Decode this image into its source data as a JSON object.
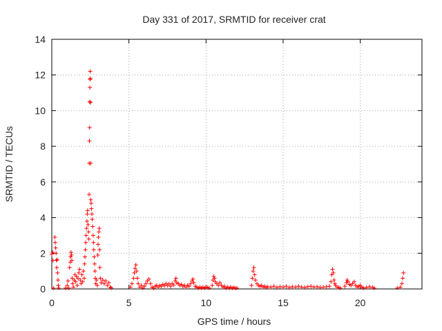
{
  "chart_data": {
    "type": "scatter",
    "title": "Day 331 of 2017, SRMTID for receiver crat",
    "xlabel": "GPS time / hours",
    "ylabel": "SRMTID / TECUs",
    "xlim": [
      0,
      24
    ],
    "ylim": [
      0,
      14
    ],
    "xticks": [
      0,
      5,
      10,
      15,
      20
    ],
    "yticks": [
      0,
      2,
      4,
      6,
      8,
      10,
      12,
      14
    ],
    "grid": true,
    "marker": "+",
    "color": "#ff0000",
    "series": [
      {
        "name": "crat",
        "points": [
          [
            0.0,
            1.95
          ],
          [
            0.05,
            2.05
          ],
          [
            0.08,
            1.6
          ],
          [
            0.1,
            0.05
          ],
          [
            0.2,
            2.9
          ],
          [
            0.22,
            2.6
          ],
          [
            0.25,
            2.3
          ],
          [
            0.28,
            2.0
          ],
          [
            0.3,
            1.6
          ],
          [
            0.32,
            1.2
          ],
          [
            0.35,
            1.65
          ],
          [
            0.37,
            0.9
          ],
          [
            0.4,
            0.5
          ],
          [
            0.42,
            0.2
          ],
          [
            0.45,
            0.05
          ],
          [
            0.9,
            0.05
          ],
          [
            1.0,
            0.2
          ],
          [
            1.05,
            0.45
          ],
          [
            1.1,
            0.05
          ],
          [
            1.15,
            1.2
          ],
          [
            1.2,
            1.5
          ],
          [
            1.22,
            1.8
          ],
          [
            1.25,
            2.05
          ],
          [
            1.28,
            1.9
          ],
          [
            1.3,
            1.6
          ],
          [
            1.32,
            0.6
          ],
          [
            1.35,
            0.3
          ],
          [
            1.4,
            0.1
          ],
          [
            1.45,
            0.5
          ],
          [
            1.5,
            0.8
          ],
          [
            1.55,
            0.4
          ],
          [
            1.6,
            0.7
          ],
          [
            1.65,
            0.2
          ],
          [
            1.7,
            0.6
          ],
          [
            1.75,
            0.9
          ],
          [
            1.8,
            1.1
          ],
          [
            1.85,
            0.5
          ],
          [
            1.9,
            0.3
          ],
          [
            1.95,
            0.8
          ],
          [
            2.0,
            0.4
          ],
          [
            2.05,
            1.0
          ],
          [
            2.1,
            0.6
          ],
          [
            2.12,
            1.4
          ],
          [
            2.15,
            1.8
          ],
          [
            2.18,
            2.2
          ],
          [
            2.2,
            2.6
          ],
          [
            2.22,
            3.0
          ],
          [
            2.25,
            3.4
          ],
          [
            2.28,
            3.8
          ],
          [
            2.3,
            4.2
          ],
          [
            2.32,
            4.4
          ],
          [
            2.35,
            3.6
          ],
          [
            2.38,
            3.2
          ],
          [
            2.4,
            2.8
          ],
          [
            2.42,
            5.3
          ],
          [
            2.43,
            7.05
          ],
          [
            2.44,
            8.3
          ],
          [
            2.45,
            9.05
          ],
          [
            2.46,
            10.5
          ],
          [
            2.47,
            11.3
          ],
          [
            2.48,
            11.75
          ],
          [
            2.49,
            12.2
          ],
          [
            2.5,
            11.8
          ],
          [
            2.51,
            10.45
          ],
          [
            2.52,
            7.05
          ],
          [
            2.53,
            5.0
          ],
          [
            2.55,
            4.8
          ],
          [
            2.57,
            4.5
          ],
          [
            2.6,
            4.2
          ],
          [
            2.62,
            3.9
          ],
          [
            2.65,
            3.5
          ],
          [
            2.68,
            3.0
          ],
          [
            2.7,
            2.6
          ],
          [
            2.72,
            2.2
          ],
          [
            2.75,
            1.8
          ],
          [
            2.78,
            1.4
          ],
          [
            2.8,
            1.0
          ],
          [
            2.82,
            0.6
          ],
          [
            2.85,
            0.3
          ],
          [
            2.9,
            0.5
          ],
          [
            2.95,
            0.2
          ],
          [
            2.98,
            1.9
          ],
          [
            3.0,
            2.5
          ],
          [
            3.02,
            2.9
          ],
          [
            3.05,
            3.2
          ],
          [
            3.08,
            3.4
          ],
          [
            3.1,
            2.2
          ],
          [
            3.12,
            1.2
          ],
          [
            3.15,
            0.6
          ],
          [
            3.2,
            0.35
          ],
          [
            3.3,
            0.5
          ],
          [
            3.4,
            0.3
          ],
          [
            3.5,
            0.45
          ],
          [
            3.6,
            0.2
          ],
          [
            3.7,
            0.35
          ],
          [
            3.8,
            0.1
          ],
          [
            3.85,
            0.05
          ],
          [
            5.1,
            0.1
          ],
          [
            5.2,
            0.3
          ],
          [
            5.3,
            0.6
          ],
          [
            5.35,
            0.9
          ],
          [
            5.4,
            1.15
          ],
          [
            5.45,
            1.35
          ],
          [
            5.5,
            1.0
          ],
          [
            5.55,
            0.6
          ],
          [
            5.6,
            0.3
          ],
          [
            5.7,
            0.1
          ],
          [
            5.8,
            0.2
          ],
          [
            5.9,
            0.05
          ],
          [
            6.0,
            0.15
          ],
          [
            6.1,
            0.3
          ],
          [
            6.2,
            0.45
          ],
          [
            6.3,
            0.55
          ],
          [
            6.4,
            0.3
          ],
          [
            6.5,
            0.1
          ],
          [
            6.6,
            0.05
          ],
          [
            6.7,
            0.15
          ],
          [
            6.8,
            0.2
          ],
          [
            6.9,
            0.1
          ],
          [
            7.0,
            0.2
          ],
          [
            7.1,
            0.15
          ],
          [
            7.2,
            0.25
          ],
          [
            7.3,
            0.18
          ],
          [
            7.4,
            0.3
          ],
          [
            7.5,
            0.2
          ],
          [
            7.6,
            0.28
          ],
          [
            7.7,
            0.15
          ],
          [
            7.8,
            0.3
          ],
          [
            7.9,
            0.22
          ],
          [
            8.0,
            0.45
          ],
          [
            8.05,
            0.6
          ],
          [
            8.1,
            0.35
          ],
          [
            8.2,
            0.3
          ],
          [
            8.3,
            0.2
          ],
          [
            8.4,
            0.25
          ],
          [
            8.5,
            0.15
          ],
          [
            8.6,
            0.2
          ],
          [
            8.7,
            0.1
          ],
          [
            8.8,
            0.2
          ],
          [
            8.9,
            0.15
          ],
          [
            9.0,
            0.3
          ],
          [
            9.1,
            0.45
          ],
          [
            9.15,
            0.55
          ],
          [
            9.2,
            0.35
          ],
          [
            9.3,
            0.15
          ],
          [
            9.4,
            0.1
          ],
          [
            9.5,
            0.05
          ],
          [
            9.6,
            0.1
          ],
          [
            9.7,
            0.05
          ],
          [
            9.8,
            0.1
          ],
          [
            9.9,
            0.05
          ],
          [
            10.0,
            0.1
          ],
          [
            10.1,
            0.08
          ],
          [
            10.2,
            0.05
          ],
          [
            10.4,
            0.2
          ],
          [
            10.45,
            0.5
          ],
          [
            10.5,
            0.7
          ],
          [
            10.55,
            0.6
          ],
          [
            10.6,
            0.4
          ],
          [
            10.7,
            0.3
          ],
          [
            10.8,
            0.2
          ],
          [
            10.9,
            0.35
          ],
          [
            11.0,
            0.2
          ],
          [
            11.1,
            0.1
          ],
          [
            11.2,
            0.15
          ],
          [
            11.3,
            0.05
          ],
          [
            11.4,
            0.1
          ],
          [
            11.5,
            0.05
          ],
          [
            11.6,
            0.1
          ],
          [
            11.7,
            0.05
          ],
          [
            11.8,
            0.08
          ],
          [
            11.9,
            0.05
          ],
          [
            12.0,
            0.05
          ],
          [
            12.95,
            0.2
          ],
          [
            13.0,
            0.6
          ],
          [
            13.05,
            1.0
          ],
          [
            13.1,
            1.2
          ],
          [
            13.15,
            0.8
          ],
          [
            13.2,
            0.5
          ],
          [
            13.3,
            0.3
          ],
          [
            13.4,
            0.2
          ],
          [
            13.5,
            0.15
          ],
          [
            13.6,
            0.2
          ],
          [
            13.7,
            0.1
          ],
          [
            13.8,
            0.15
          ],
          [
            13.9,
            0.08
          ],
          [
            14.0,
            0.12
          ],
          [
            14.2,
            0.1
          ],
          [
            14.4,
            0.15
          ],
          [
            14.6,
            0.08
          ],
          [
            14.8,
            0.12
          ],
          [
            15.0,
            0.1
          ],
          [
            15.2,
            0.15
          ],
          [
            15.4,
            0.08
          ],
          [
            15.6,
            0.12
          ],
          [
            15.8,
            0.1
          ],
          [
            16.0,
            0.15
          ],
          [
            16.2,
            0.1
          ],
          [
            16.4,
            0.08
          ],
          [
            16.6,
            0.12
          ],
          [
            16.8,
            0.15
          ],
          [
            17.0,
            0.1
          ],
          [
            17.2,
            0.12
          ],
          [
            17.4,
            0.08
          ],
          [
            17.6,
            0.1
          ],
          [
            17.8,
            0.12
          ],
          [
            18.0,
            0.15
          ],
          [
            18.1,
            0.4
          ],
          [
            18.15,
            0.8
          ],
          [
            18.2,
            1.1
          ],
          [
            18.25,
            0.9
          ],
          [
            18.3,
            0.5
          ],
          [
            18.35,
            0.3
          ],
          [
            18.4,
            0.2
          ],
          [
            18.5,
            0.1
          ],
          [
            18.6,
            0.08
          ],
          [
            18.7,
            0.05
          ],
          [
            19.0,
            0.15
          ],
          [
            19.1,
            0.35
          ],
          [
            19.15,
            0.5
          ],
          [
            19.2,
            0.4
          ],
          [
            19.3,
            0.25
          ],
          [
            19.4,
            0.2
          ],
          [
            19.5,
            0.3
          ],
          [
            19.6,
            0.4
          ],
          [
            19.7,
            0.2
          ],
          [
            19.8,
            0.1
          ],
          [
            19.9,
            0.15
          ],
          [
            20.0,
            0.2
          ],
          [
            20.1,
            0.1
          ],
          [
            20.2,
            0.05
          ],
          [
            20.4,
            0.08
          ],
          [
            20.6,
            0.12
          ],
          [
            20.8,
            0.08
          ],
          [
            20.9,
            0.05
          ],
          [
            22.4,
            0.05
          ],
          [
            22.6,
            0.1
          ],
          [
            22.7,
            0.3
          ],
          [
            22.75,
            0.6
          ],
          [
            22.8,
            0.9
          ]
        ]
      }
    ]
  }
}
